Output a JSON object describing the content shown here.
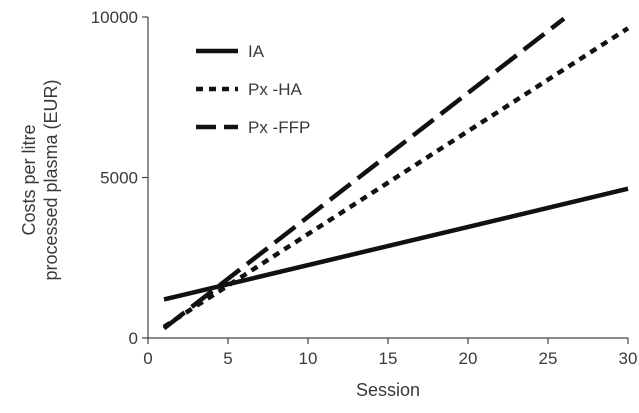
{
  "chart_data": {
    "type": "line",
    "title": "",
    "xlabel": "Session",
    "ylabel_lines": [
      "Costs per litre",
      "processed plasma (EUR)"
    ],
    "xlim": [
      0,
      30
    ],
    "ylim": [
      0,
      10000
    ],
    "x_ticks": [
      0,
      5,
      10,
      15,
      20,
      25,
      30
    ],
    "x_tick_labels": [
      "0",
      "5",
      "10",
      "15",
      "20",
      "25",
      "30"
    ],
    "y_ticks": [
      0,
      5000,
      10000
    ],
    "y_tick_labels": [
      "0",
      "5000",
      "10000"
    ],
    "grid": false,
    "legend_position": "top-left",
    "series": [
      {
        "name": "IA",
        "style": "solid",
        "x": [
          1,
          30
        ],
        "y": [
          1200,
          4650
        ]
      },
      {
        "name": "Px -HA",
        "style": "dotted",
        "x": [
          1,
          30
        ],
        "y": [
          350,
          9650
        ]
      },
      {
        "name": "Px -FFP",
        "style": "dashed",
        "x": [
          1,
          26
        ],
        "y": [
          300,
          9950
        ]
      }
    ],
    "colors": {
      "line": "#111111",
      "axis": "#444444",
      "text": "#3a3a3a"
    }
  }
}
